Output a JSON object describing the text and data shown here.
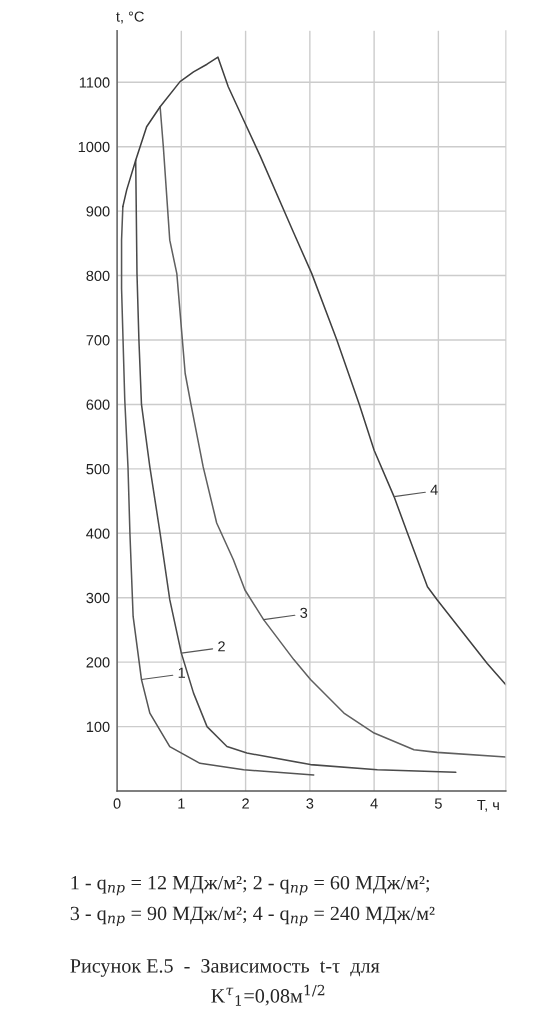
{
  "chart_data": {
    "type": "line",
    "xlabel": "T, ч",
    "ylabel": "t, °C",
    "xlim": [
      0,
      6.05
    ],
    "ylim": [
      0,
      1180
    ],
    "xticks": [
      0,
      1,
      2,
      3,
      4,
      5
    ],
    "yticks": [
      100,
      200,
      300,
      400,
      500,
      600,
      700,
      800,
      900,
      1000,
      1100
    ],
    "grid": true,
    "marker": "none",
    "line_style": "solid",
    "series": [
      {
        "color": "#555555",
        "x": [
          0.09,
          0.07,
          0.07,
          0.12,
          0.17,
          0.2,
          0.25,
          0.38,
          0.51,
          0.82,
          1.29,
          1.97,
          3.06
        ],
        "values": [
          907,
          855,
          780,
          607,
          503,
          400,
          271,
          173,
          121,
          69,
          43,
          33,
          25
        ]
      },
      {
        "color": "#4a4a4a",
        "x": [
          0.29,
          0.31,
          0.34,
          0.38,
          0.51,
          0.67,
          0.82,
          1.0,
          1.19,
          1.4,
          1.71,
          2.02,
          3.01,
          4.05,
          5.27
        ],
        "values": [
          979,
          803,
          700,
          600,
          503,
          400,
          297,
          214,
          152,
          100,
          69,
          59,
          41,
          33,
          29
        ]
      },
      {
        "color": "#606060",
        "x": [
          0.67,
          0.72,
          0.82,
          0.93,
          1.06,
          1.15,
          1.34,
          1.55,
          1.81,
          1.99,
          2.28,
          2.75,
          3.01,
          3.53,
          4.0,
          4.62,
          4.98,
          6.05
        ],
        "values": [
          1062,
          1000,
          855,
          803,
          648,
          600,
          503,
          416,
          359,
          312,
          266,
          204,
          173,
          121,
          90,
          64,
          60,
          53
        ]
      },
      {
        "color": "#404040",
        "x": [
          0.09,
          0.15,
          0.29,
          0.46,
          0.67,
          0.98,
          1.19,
          1.4,
          1.57,
          1.73,
          1.97,
          2.23,
          2.75,
          3.03,
          3.42,
          3.77,
          4.0,
          4.31,
          4.52,
          4.83,
          4.98,
          5.35,
          5.76,
          6.05
        ],
        "values": [
          907,
          933,
          979,
          1031,
          1062,
          1101,
          1116,
          1128,
          1139,
          1093,
          1041,
          985,
          866,
          803,
          700,
          600,
          529,
          457,
          400,
          317,
          297,
          250,
          198,
          165
        ]
      }
    ],
    "annotations": [
      {
        "text": "1",
        "x": 0.38,
        "y": 173
      },
      {
        "text": "2",
        "x": 1.0,
        "y": 214
      },
      {
        "text": "3",
        "x": 2.28,
        "y": 266
      },
      {
        "text": "4",
        "x": 4.31,
        "y": 457
      },
      "1 - q$_{пр}$ = 12 МДж/м²; 2 - q$_{пр}$ = 60 МДж/м²;",
      "3 - q$_{пр}$ = 90 МДж/м²; 4 - q$_{пр}$ = 240 МДж/м²",
      "Рисунок Е.5  -  Зависимость  t-τ  для",
      "K$^{τ}$$_{1}$=0,08м$^{1/2}$"
    ]
  }
}
